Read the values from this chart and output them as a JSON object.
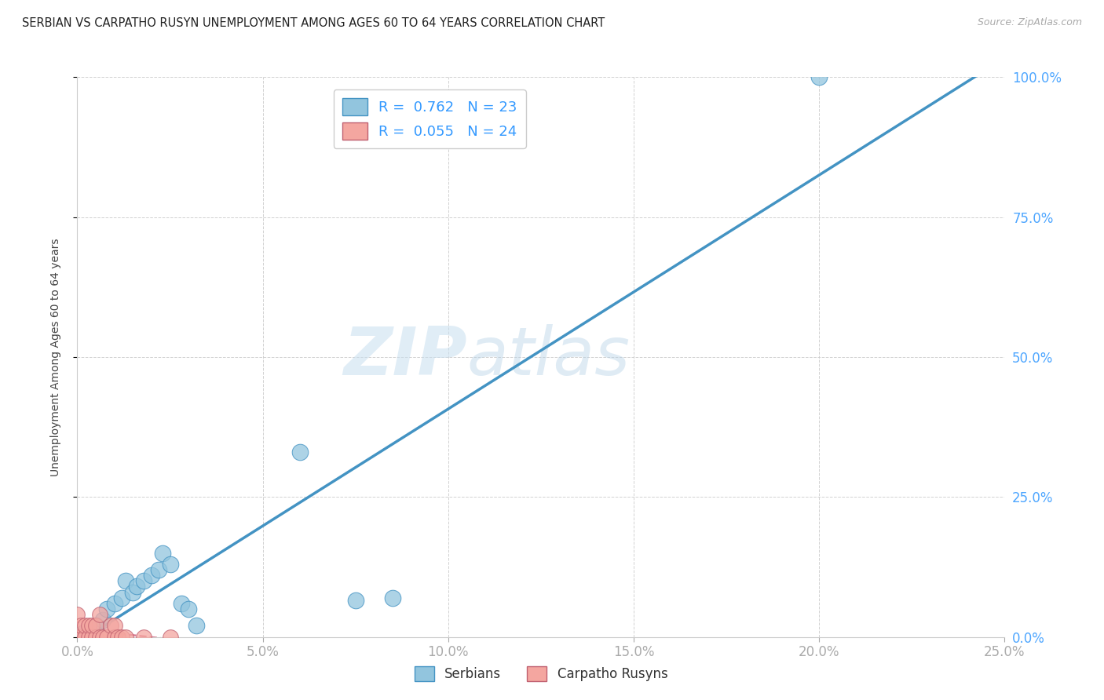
{
  "title": "SERBIAN VS CARPATHO RUSYN UNEMPLOYMENT AMONG AGES 60 TO 64 YEARS CORRELATION CHART",
  "source": "Source: ZipAtlas.com",
  "xlim": [
    0,
    0.25
  ],
  "ylim": [
    0,
    1.0
  ],
  "watermark_text": "ZIP",
  "watermark_text2": "atlas",
  "serbian_color": "#92c5de",
  "rusyn_color": "#f4a6a0",
  "serbian_line_color": "#4393c3",
  "rusyn_line_color": "#d6728a",
  "ylabel": "Unemployment Among Ages 60 to 64 years",
  "legend_serbian_label": "R =  0.762   N = 23",
  "legend_rusyn_label": "R =  0.055   N = 24",
  "serbian_x": [
    0.001,
    0.002,
    0.003,
    0.005,
    0.007,
    0.008,
    0.01,
    0.012,
    0.013,
    0.015,
    0.016,
    0.018,
    0.02,
    0.022,
    0.023,
    0.025,
    0.028,
    0.03,
    0.032,
    0.06,
    0.075,
    0.085,
    0.2
  ],
  "serbian_y": [
    0.005,
    0.01,
    0.005,
    0.02,
    0.03,
    0.05,
    0.06,
    0.07,
    0.1,
    0.08,
    0.09,
    0.1,
    0.11,
    0.12,
    0.15,
    0.13,
    0.06,
    0.05,
    0.02,
    0.33,
    0.065,
    0.07,
    1.0
  ],
  "rusyn_x": [
    0.0,
    0.0,
    0.001,
    0.001,
    0.002,
    0.002,
    0.003,
    0.003,
    0.004,
    0.004,
    0.005,
    0.005,
    0.006,
    0.006,
    0.007,
    0.008,
    0.009,
    0.01,
    0.01,
    0.011,
    0.012,
    0.013,
    0.018,
    0.025
  ],
  "rusyn_y": [
    0.0,
    0.04,
    0.0,
    0.02,
    0.0,
    0.02,
    0.0,
    0.02,
    0.0,
    0.02,
    0.0,
    0.02,
    0.0,
    0.04,
    0.0,
    0.0,
    0.02,
    0.0,
    0.02,
    0.0,
    0.0,
    0.0,
    0.0,
    0.0
  ],
  "x_tick_vals": [
    0.0,
    0.05,
    0.1,
    0.15,
    0.2,
    0.25
  ],
  "y_tick_vals": [
    0.0,
    0.25,
    0.5,
    0.75,
    1.0
  ],
  "tick_color": "#4da6ff",
  "tick_fontsize": 12,
  "title_fontsize": 10.5,
  "source_fontsize": 9,
  "ylabel_fontsize": 10,
  "ylabel_color": "#444444",
  "grid_color": "#cccccc",
  "bottom_legend_labels": [
    "Serbians",
    "Carpatho Rusyns"
  ]
}
